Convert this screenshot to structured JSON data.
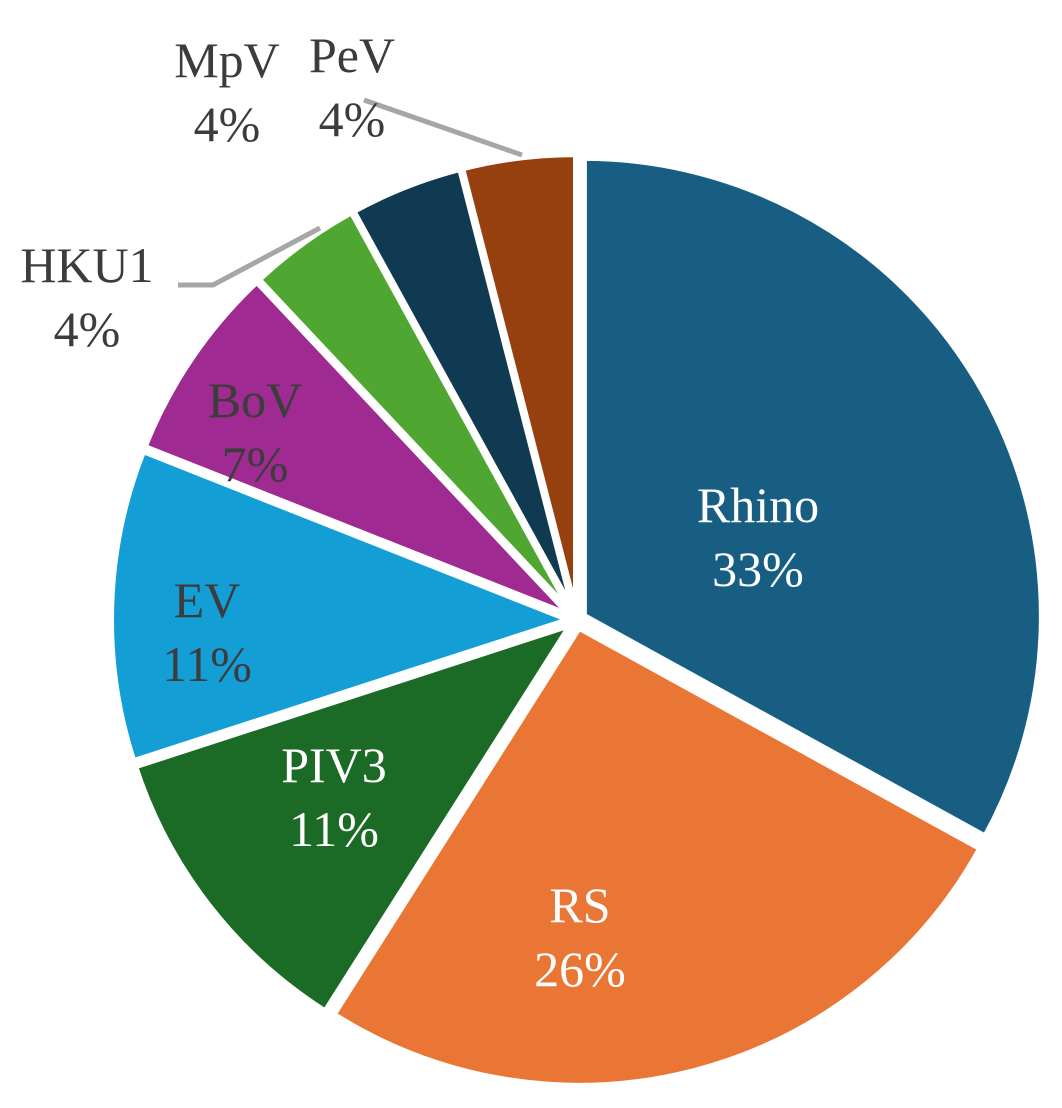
{
  "chart_data": {
    "type": "pie",
    "title": "",
    "slices": [
      {
        "label": "Rhino",
        "value": 33,
        "value_label": "33%",
        "color": "#185E82",
        "text_color": "#FFFFFF"
      },
      {
        "label": "RS",
        "value": 26,
        "value_label": "26%",
        "color": "#E97635",
        "text_color": "#FFFFFF"
      },
      {
        "label": "PIV3",
        "value": 11,
        "value_label": "11%",
        "color": "#1B6B26",
        "text_color": "#FFFFFF"
      },
      {
        "label": "EV",
        "value": 11,
        "value_label": "11%",
        "color": "#139FD6",
        "text_color": "#3C3C3C"
      },
      {
        "label": "BoV",
        "value": 7,
        "value_label": "7%",
        "color": "#9E2A92",
        "text_color": "#3C3C3C"
      },
      {
        "label": "HKU1",
        "value": 4,
        "value_label": "4%",
        "color": "#4FA731",
        "text_color": "#3C3C3C"
      },
      {
        "label": "MpV",
        "value": 4,
        "value_label": "4%",
        "color": "#0F3A52",
        "text_color": "#3C3C3C"
      },
      {
        "label": "PeV",
        "value": 4,
        "value_label": "4%",
        "color": "#97400F",
        "text_color": "#3C3C3C"
      }
    ],
    "leader_line_color": "#A6A6A6",
    "legend": "none"
  }
}
